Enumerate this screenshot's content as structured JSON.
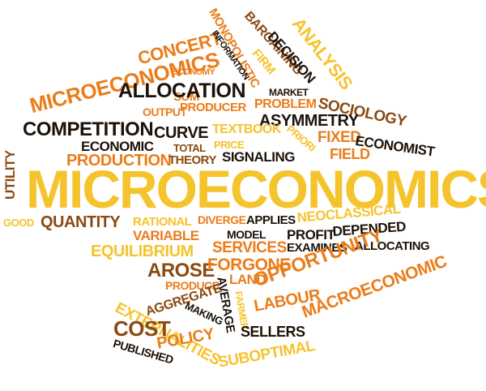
{
  "words": {
    "microeconomics_main": "MICROECONOMICS",
    "microeconomics_small": "MICROECONOMICS",
    "concert": "CONCERT",
    "sum": "SUM",
    "allocation": "ALLOCATION",
    "economy": "ECONOMY",
    "output": "OUTPUT",
    "producer": "PRODUCER",
    "monopolistic": "MONOPOLISTIC",
    "information": "INFORMATION",
    "firm": "FIRM",
    "bargaining": "BARGAINING",
    "decision": "DECISION",
    "analysis": "ANALYSIS",
    "market": "MARKET",
    "problem": "PROBLEM",
    "sociology": "SOCIOLOGY",
    "asymmetry": "ASYMMETRY",
    "competition": "COMPETITION",
    "curve": "CURVE",
    "textbook": "TEXTBOOK",
    "price": "PRICE",
    "priori": "PRIORI",
    "fixed": "FIXED",
    "economist": "ECONOMIST",
    "economic": "ECONOMIC",
    "total": "TOTAL",
    "production": "PRODUCTION",
    "theory": "THEORY",
    "signaling": "SIGNALING",
    "field": "FIELD",
    "utility": "UTILITY",
    "good": "GOOD",
    "quantity": "QUANTITY",
    "rational": "RATIONAL",
    "diverge": "DIVERGE",
    "applies": "APPLIES",
    "neoclassical": "NEOCLASSICAL",
    "variable": "VARIABLE",
    "model": "MODEL",
    "profit": "PROFIT",
    "depended": "DEPENDED",
    "equilibrium": "EQUILIBRIUM",
    "services": "SERVICES",
    "examines": "EXAMINES",
    "allocating": "ALLOCATING",
    "arose": "AROSE",
    "forgone": "FORGONE",
    "opportunity": "OPPORTUNITY",
    "land": "LAND",
    "produce": "PRODUCE",
    "average": "AVERAGE",
    "macroeconomic": "MACROECONOMIC",
    "farmer": "FARMER",
    "aggregate": "AGGREGATE",
    "making": "MAKING",
    "labour": "LABOUR",
    "externalities": "EXTERNALITIES",
    "cost": "COST",
    "sellers": "SELLERS",
    "policy": "POLICY",
    "published": "PUBLISHED",
    "suboptimal": "SUBOPTIMAL"
  },
  "colors": {
    "yellow": "#f5c32c",
    "orange": "#ea7d1a",
    "dark": "#1c1209",
    "brown": "#8a4a12",
    "rust": "#c25510"
  }
}
